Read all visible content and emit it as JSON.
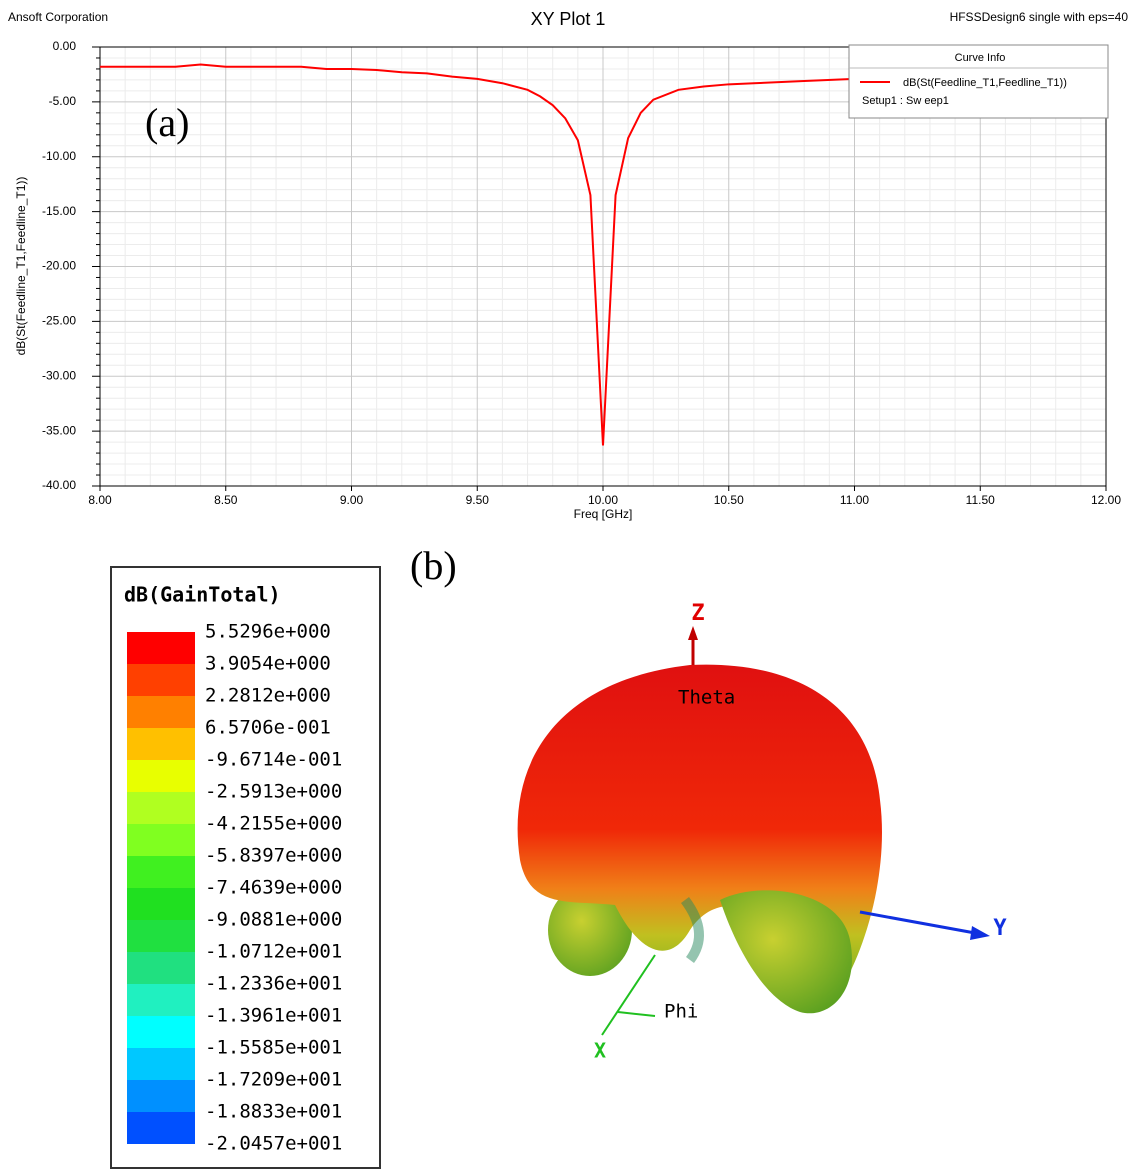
{
  "chart_data": {
    "type": "line",
    "header_left": "Ansoft Corporation",
    "title": "XY Plot 1",
    "header_right": "HFSSDesign6 single with eps=40",
    "annotation": "(a)",
    "x_label": "Freq [GHz]",
    "y_label": "dB(St(Feedline_T1,Feedline_T1))",
    "xlim": [
      8,
      12
    ],
    "ylim": [
      -40,
      0
    ],
    "xticks": [
      {
        "value": 8,
        "label": "8.00"
      },
      {
        "value": 8.5,
        "label": "8.50"
      },
      {
        "value": 9,
        "label": "9.00"
      },
      {
        "value": 9.5,
        "label": "9.50"
      },
      {
        "value": 10,
        "label": "10.00"
      },
      {
        "value": 10.5,
        "label": "10.50"
      },
      {
        "value": 11,
        "label": "11.00"
      },
      {
        "value": 11.5,
        "label": "11.50"
      },
      {
        "value": 12,
        "label": "12.00"
      }
    ],
    "yticks": [
      {
        "value": 0,
        "label": "0.00"
      },
      {
        "value": -5,
        "label": "-5.00"
      },
      {
        "value": -10,
        "label": "-10.00"
      },
      {
        "value": -15,
        "label": "-15.00"
      },
      {
        "value": -20,
        "label": "-20.00"
      },
      {
        "value": -25,
        "label": "-25.00"
      },
      {
        "value": -30,
        "label": "-30.00"
      },
      {
        "value": -35,
        "label": "-35.00"
      },
      {
        "value": -40,
        "label": "-40.00"
      }
    ],
    "grid": true,
    "legend_position": "top right",
    "legend_title": "Curve Info",
    "legend_subtitle": "Setup1 : Sw eep1",
    "x": [
      8.0,
      8.3,
      8.4,
      8.5,
      8.8,
      8.9,
      9.0,
      9.1,
      9.2,
      9.3,
      9.4,
      9.5,
      9.6,
      9.7,
      9.75,
      9.8,
      9.85,
      9.9,
      9.95,
      10.0,
      10.05,
      10.1,
      10.15,
      10.2,
      10.3,
      10.4,
      10.5,
      10.6,
      10.8,
      11.0,
      11.5,
      12.0
    ],
    "series": [
      {
        "name": "dB(St(Feedline_T1,Feedline_T1))",
        "color": "#ff0000",
        "values": [
          -1.8,
          -1.8,
          -1.6,
          -1.8,
          -1.8,
          -2.0,
          -2.0,
          -2.1,
          -2.3,
          -2.4,
          -2.7,
          -2.9,
          -3.3,
          -3.9,
          -4.5,
          -5.3,
          -6.5,
          -8.5,
          -13.5,
          -36.3,
          -13.5,
          -8.3,
          -6.0,
          -4.8,
          -3.9,
          -3.6,
          -3.4,
          -3.3,
          -3.1,
          -2.9,
          -2.8,
          -2.7
        ]
      }
    ]
  },
  "colorbar": {
    "annotation": "(b)",
    "title": "dB(GainTotal)",
    "labels": [
      "5.5296e+000",
      "3.9054e+000",
      "2.2812e+000",
      "6.5706e-001",
      "-9.6714e-001",
      "-2.5913e+000",
      "-4.2155e+000",
      "-5.8397e+000",
      "-7.4639e+000",
      "-9.0881e+000",
      "-1.0712e+001",
      "-1.2336e+001",
      "-1.3961e+001",
      "-1.5585e+001",
      "-1.7209e+001",
      "-1.8833e+001",
      "-2.0457e+001"
    ],
    "colors": [
      "#ff0000",
      "#ff4000",
      "#ff8000",
      "#ffc000",
      "#e8ff00",
      "#b0ff20",
      "#80ff20",
      "#40f020",
      "#20e020",
      "#20e040",
      "#20e080",
      "#20f0c0",
      "#00ffff",
      "#00c8ff",
      "#0090ff",
      "#0050ff",
      "#0010ff"
    ]
  },
  "pattern_3d": {
    "z_label": "Z",
    "y_label": "Y",
    "x_label": "X",
    "theta_label": "Theta",
    "phi_label": "Phi"
  }
}
